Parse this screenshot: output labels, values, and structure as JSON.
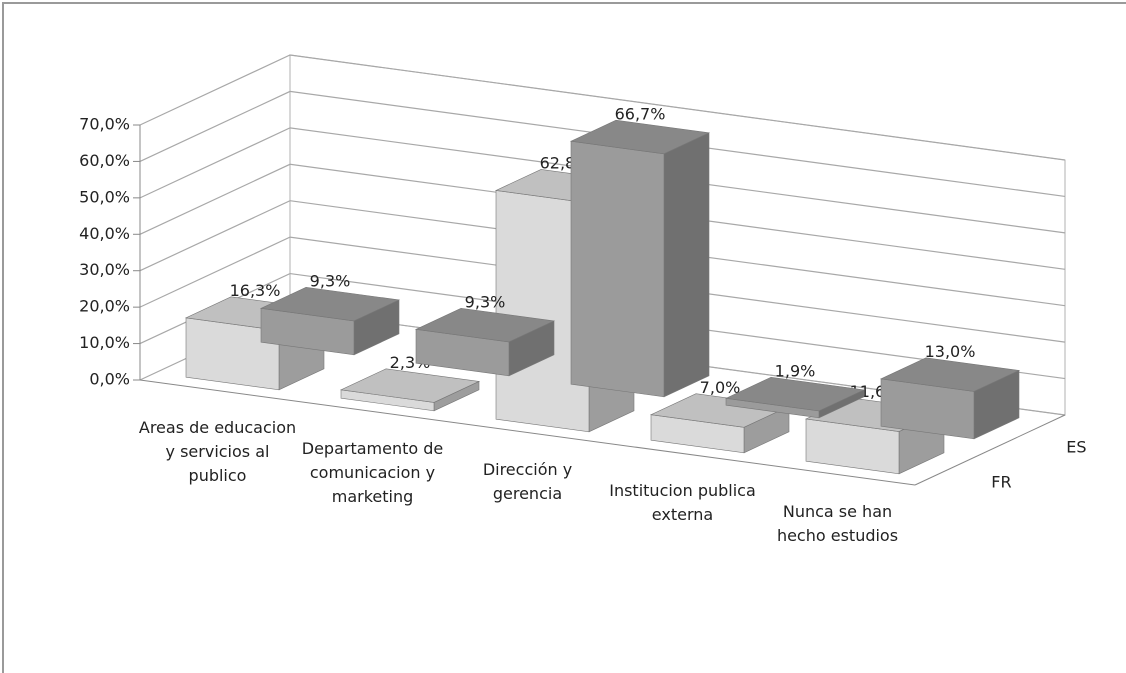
{
  "chart_data": {
    "type": "bar3d",
    "categories": [
      "Areas de educacion y servicios al publico",
      "Departamento de comunicacion y marketing",
      "Dirección y gerencia",
      "Institucion publica externa",
      "Nunca se han hecho estudios"
    ],
    "series": [
      {
        "name": "ES",
        "color": "#9b9b9b",
        "values": [
          9.3,
          9.3,
          66.7,
          1.9,
          13.0
        ],
        "value_labels": [
          "9,3%",
          "9,3%",
          "66,7%",
          "1,9%",
          "13,0%"
        ]
      },
      {
        "name": "FR",
        "color": "#dadada",
        "values": [
          16.3,
          2.3,
          62.8,
          7.0,
          11.6
        ],
        "value_labels": [
          "16,3%",
          "2,3%",
          "62,8%",
          "7,0%",
          "11,6%"
        ]
      }
    ],
    "ylim": [
      0,
      70
    ],
    "yticks": [
      {
        "value": 0,
        "label": "0,0%"
      },
      {
        "value": 10,
        "label": "10,0%"
      },
      {
        "value": 20,
        "label": "20,0%"
      },
      {
        "value": 30,
        "label": "30,0%"
      },
      {
        "value": 40,
        "label": "40,0%"
      },
      {
        "value": 50,
        "label": "50,0%"
      },
      {
        "value": 60,
        "label": "60,0%"
      },
      {
        "value": 70,
        "label": "70,0%"
      }
    ],
    "grid": true
  }
}
